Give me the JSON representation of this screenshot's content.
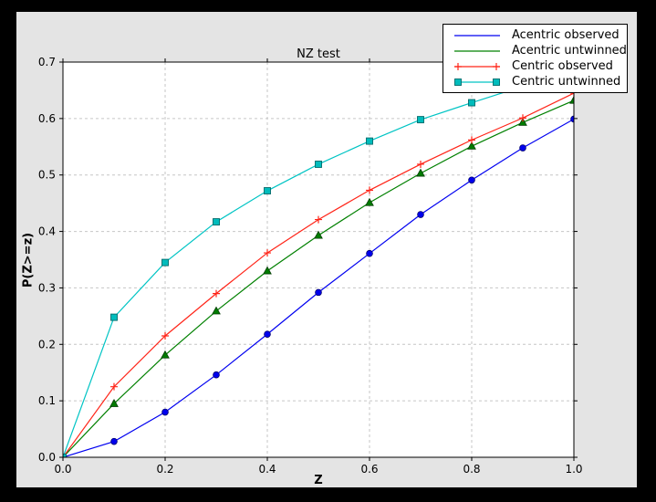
{
  "window": {
    "background": "#000000"
  },
  "figure": {
    "background": "#e4e4e4",
    "plot_background": "#ffffff",
    "frame_color": "#000000",
    "grid_color": "#c6c6c6",
    "title": "NZ test",
    "xlabel": "Z",
    "ylabel": "P(Z>=z)"
  },
  "axes": {
    "xlim": [
      0,
      1.0
    ],
    "ylim": [
      0,
      0.7
    ],
    "xticks": [
      0.0,
      0.2,
      0.4,
      0.6,
      0.8,
      1.0
    ],
    "xtick_labels": [
      "0.0",
      "0.2",
      "0.4",
      "0.6",
      "0.8",
      "1.0"
    ],
    "yticks": [
      0.0,
      0.1,
      0.2,
      0.3,
      0.4,
      0.5,
      0.6,
      0.7
    ],
    "ytick_labels": [
      "0.0",
      "0.1",
      "0.2",
      "0.3",
      "0.4",
      "0.5",
      "0.6",
      "0.7"
    ],
    "xgrid": [
      0.2,
      0.4,
      0.6,
      0.8
    ],
    "ygrid": [
      0.1,
      0.2,
      0.3,
      0.4,
      0.5,
      0.6
    ]
  },
  "chart_data": {
    "type": "line",
    "title": "NZ test",
    "xlabel": "Z",
    "ylabel": "P(Z>=z)",
    "xlim": [
      0,
      1.0
    ],
    "ylim": [
      0,
      0.7
    ],
    "grid": true,
    "legend_position": "upper right, overlapping plot corner",
    "x": [
      0.0,
      0.1,
      0.2,
      0.3,
      0.4,
      0.5,
      0.6,
      0.7,
      0.8,
      0.9,
      1.0
    ],
    "series": [
      {
        "name": "Acentric observed",
        "color": "#0000f0",
        "marker": "circle",
        "marker_fill": "#0000ee",
        "marker_edge": "#000070",
        "legend_shows_marker": false,
        "values": [
          0.0,
          0.028,
          0.08,
          0.146,
          0.218,
          0.292,
          0.361,
          0.43,
          0.491,
          0.548,
          0.599
        ]
      },
      {
        "name": "Acentric untwinned",
        "color": "#008000",
        "marker": "triangle",
        "marker_fill": "#007c00",
        "marker_edge": "#003c00",
        "legend_shows_marker": false,
        "values": [
          0.0,
          0.095,
          0.181,
          0.259,
          0.33,
          0.393,
          0.451,
          0.503,
          0.551,
          0.593,
          0.632
        ]
      },
      {
        "name": "Centric observed",
        "color": "#ff2418",
        "marker": "plus",
        "marker_fill": "#ff2418",
        "marker_edge": "#e01000",
        "legend_shows_marker": true,
        "values": [
          0.0,
          0.125,
          0.215,
          0.29,
          0.362,
          0.421,
          0.473,
          0.519,
          0.562,
          0.601,
          0.645
        ]
      },
      {
        "name": "Centric untwinned",
        "color": "#00c4c4",
        "marker": "square",
        "marker_fill": "#00bcbc",
        "marker_edge": "#006a6a",
        "legend_shows_marker": true,
        "values": [
          0.0,
          0.248,
          0.345,
          0.417,
          0.472,
          0.519,
          0.56,
          0.598,
          0.628,
          0.657,
          0.683
        ]
      }
    ]
  }
}
